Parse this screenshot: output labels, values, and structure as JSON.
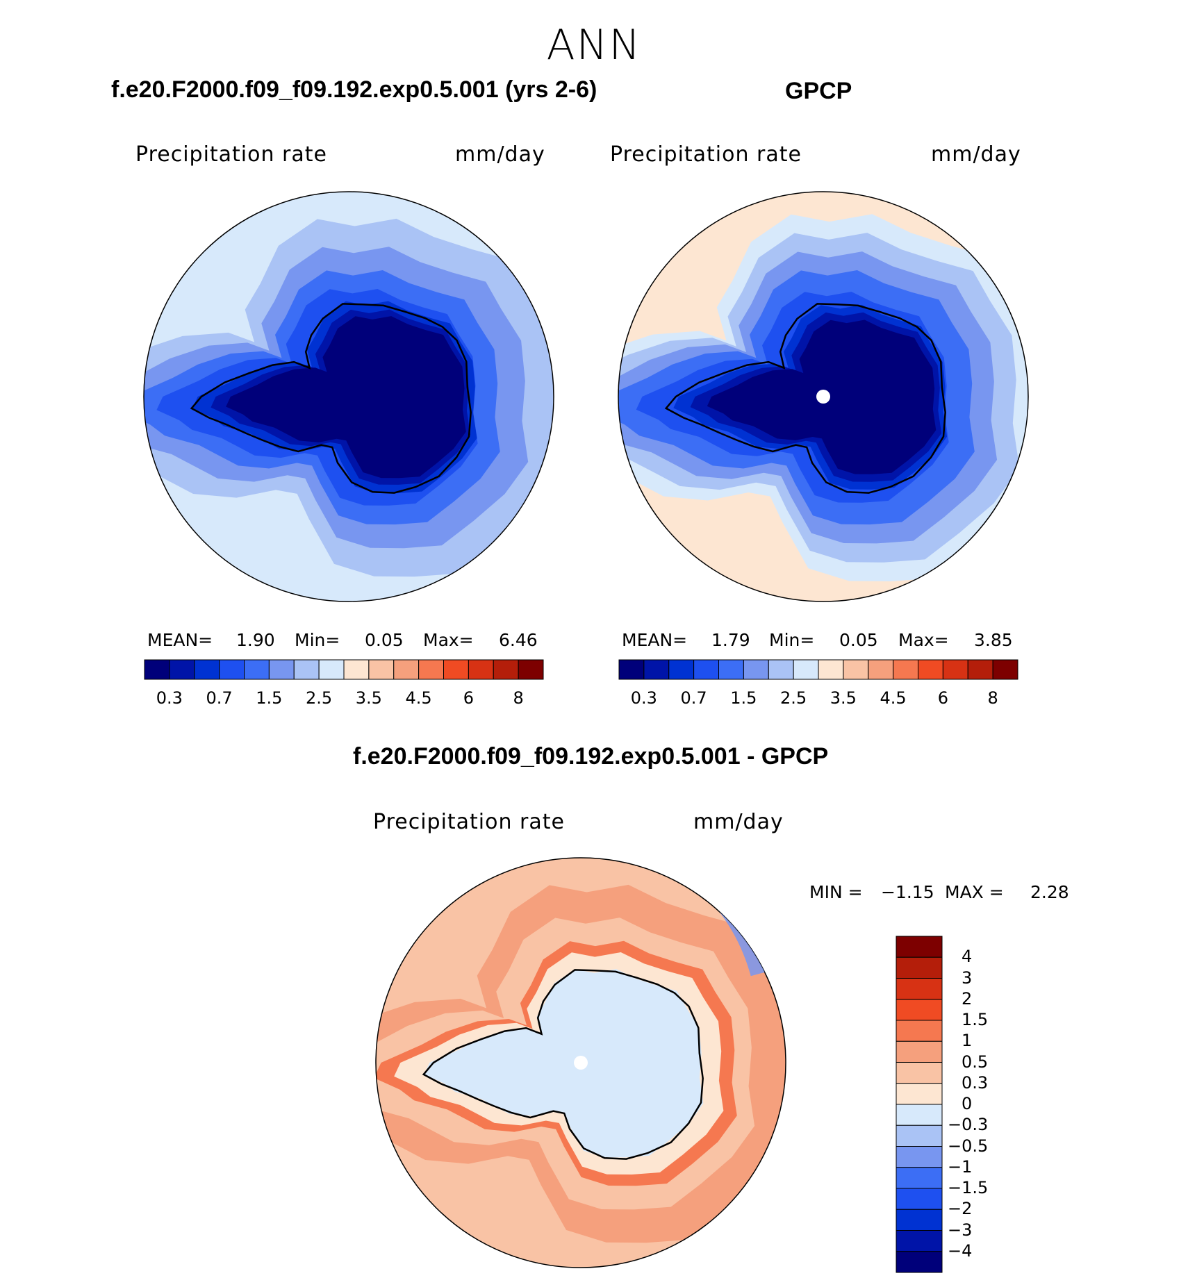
{
  "page_title": "ANN",
  "colors": {
    "abs_scale": [
      "#00007a",
      "#0014a8",
      "#0032d2",
      "#1e50f0",
      "#3c6ef5",
      "#7896f0",
      "#aac3f5",
      "#d7e9fb",
      "#fde6d2",
      "#f9c3a5",
      "#f5a07d",
      "#f57850",
      "#f04b23",
      "#d73214",
      "#b41e0a",
      "#7d0000"
    ],
    "diff_scale": [
      "#00007a",
      "#0014a8",
      "#0032d2",
      "#1e50f0",
      "#3c6ef5",
      "#7896f0",
      "#aac3f5",
      "#d7e9fb",
      "#fde6d2",
      "#f9c3a5",
      "#f5a07d",
      "#f57850",
      "#f04b23",
      "#d73214",
      "#b41e0a",
      "#7d0000"
    ],
    "coastline": "#000000",
    "pole_marker": "#ffffff"
  },
  "chart_data": [
    {
      "type": "heatmap",
      "subtype": "polar-stereographic contour map",
      "title": "f.e20.F2000.f09_f09.192.exp0.5.001 (yrs 2-6)",
      "variable": "Precipitation  rate",
      "units": "mm/day",
      "hemisphere": "south",
      "stats": {
        "mean_label": "MEAN=",
        "mean": "1.90",
        "min_label": "Min=",
        "min": "0.05",
        "max_label": "Max=",
        "max": "6.46"
      },
      "colorbar_labels": [
        "0.3",
        "0.7",
        "1.5",
        "2.5",
        "3.5",
        "4.5",
        "6",
        "8"
      ],
      "levels": [
        "0.2",
        "0.3",
        "0.5",
        "0.7",
        "1",
        "1.5",
        "2",
        "2.5",
        "3",
        "3.5",
        "4",
        "4.5",
        "5",
        "6",
        "7",
        "8",
        "9"
      ]
    },
    {
      "type": "heatmap",
      "subtype": "polar-stereographic contour map",
      "title": "GPCP",
      "variable": "Precipitation  rate",
      "units": "mm/day",
      "hemisphere": "south",
      "stats": {
        "mean_label": "MEAN=",
        "mean": "1.79",
        "min_label": "Min=",
        "min": "0.05",
        "max_label": "Max=",
        "max": "3.85"
      },
      "colorbar_labels": [
        "0.3",
        "0.7",
        "1.5",
        "2.5",
        "3.5",
        "4.5",
        "6",
        "8"
      ],
      "levels": [
        "0.2",
        "0.3",
        "0.5",
        "0.7",
        "1",
        "1.5",
        "2",
        "2.5",
        "3",
        "3.5",
        "4",
        "4.5",
        "5",
        "6",
        "7",
        "8",
        "9"
      ]
    },
    {
      "type": "heatmap",
      "subtype": "polar-stereographic difference contour map",
      "title": "f.e20.F2000.f09_f09.192.exp0.5.001 - GPCP",
      "variable": "Precipitation  rate",
      "units": "mm/day",
      "hemisphere": "south",
      "stats": {
        "min_label": "MIN =",
        "min": "−1.15",
        "max_label": "MAX =",
        "max": "2.28"
      },
      "colorbar_labels": [
        "4",
        "3",
        "2",
        "1.5",
        "1",
        "0.5",
        "0.3",
        "0",
        "−0.3",
        "−0.5",
        "−1",
        "−1.5",
        "−2",
        "−3",
        "−4"
      ]
    }
  ]
}
